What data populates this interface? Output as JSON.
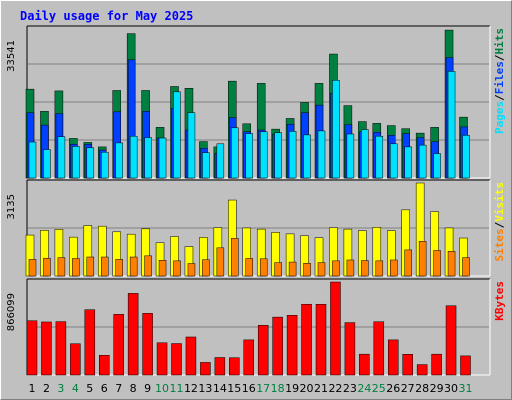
{
  "title": "Daily usage for May 2025",
  "chart_data": [
    {
      "type": "bar",
      "panel": "pages-files-hits",
      "categories": [
        "1",
        "2",
        "3",
        "4",
        "5",
        "6",
        "7",
        "8",
        "9",
        "10",
        "11",
        "12",
        "13",
        "14",
        "15",
        "16",
        "17",
        "18",
        "19",
        "20",
        "21",
        "22",
        "23",
        "24",
        "25",
        "26",
        "27",
        "28",
        "29",
        "30",
        "31"
      ],
      "weekend_days": [
        "3",
        "4",
        "10",
        "11",
        "17",
        "18",
        "24",
        "25",
        "31"
      ],
      "ymax_label": "33541",
      "ylim": [
        0,
        33541
      ],
      "series": [
        {
          "name": "Hits",
          "color": "#008040",
          "values": [
            20000,
            15000,
            19600,
            8900,
            8000,
            7000,
            19700,
            32500,
            19700,
            11400,
            20600,
            20200,
            8200,
            7000,
            21800,
            12200,
            21300,
            11000,
            13400,
            17000,
            21300,
            27900,
            16300,
            12700,
            12300,
            11800,
            11100,
            10100,
            11400,
            33300,
            13700
          ]
        },
        {
          "name": "Files",
          "color": "#0040ff",
          "values": [
            14700,
            11900,
            14500,
            7600,
            7600,
            6300,
            14900,
            26600,
            15000,
            9000,
            15700,
            10800,
            6700,
            5600,
            13600,
            10400,
            10800,
            9900,
            12100,
            14700,
            16400,
            19100,
            12000,
            10400,
            10300,
            9600,
            10000,
            9100,
            8200,
            27100,
            11500
          ]
        },
        {
          "name": "Pages",
          "color": "#00e0ff",
          "values": [
            8100,
            6400,
            9300,
            7100,
            6800,
            5800,
            7900,
            9400,
            9100,
            9000,
            19400,
            14700,
            5700,
            7700,
            11300,
            10000,
            10400,
            10200,
            10500,
            9700,
            10600,
            22000,
            9900,
            10900,
            9400,
            7700,
            7000,
            7400,
            5500,
            24000,
            9600
          ]
        }
      ]
    },
    {
      "type": "bar",
      "panel": "visits-sites",
      "categories": [
        "1",
        "2",
        "3",
        "4",
        "5",
        "6",
        "7",
        "8",
        "9",
        "10",
        "11",
        "12",
        "13",
        "14",
        "15",
        "16",
        "17",
        "18",
        "19",
        "20",
        "21",
        "22",
        "23",
        "24",
        "25",
        "26",
        "27",
        "28",
        "29",
        "30",
        "31"
      ],
      "ymax_label": "3135",
      "ylim": [
        0,
        3135
      ],
      "series": [
        {
          "name": "Visits",
          "color": "#ffff00",
          "values": [
            1380,
            1540,
            1570,
            1310,
            1700,
            1680,
            1490,
            1410,
            1590,
            1120,
            1330,
            990,
            1300,
            1630,
            2560,
            1620,
            1580,
            1470,
            1420,
            1360,
            1290,
            1630,
            1580,
            1530,
            1640,
            1530,
            2230,
            3150,
            2170,
            1620,
            1280
          ]
        },
        {
          "name": "Sites",
          "color": "#ff8000",
          "values": [
            560,
            600,
            620,
            590,
            640,
            640,
            560,
            640,
            680,
            530,
            510,
            420,
            550,
            950,
            1270,
            590,
            580,
            450,
            470,
            430,
            450,
            510,
            540,
            520,
            510,
            540,
            880,
            1170,
            860,
            830,
            620
          ]
        }
      ]
    },
    {
      "type": "bar",
      "panel": "kbytes",
      "categories": [
        "1",
        "2",
        "3",
        "4",
        "5",
        "6",
        "7",
        "8",
        "9",
        "10",
        "11",
        "12",
        "13",
        "14",
        "15",
        "16",
        "17",
        "18",
        "19",
        "20",
        "21",
        "22",
        "23",
        "24",
        "25",
        "26",
        "27",
        "28",
        "29",
        "30",
        "31"
      ],
      "ymax_label": "866099",
      "ylim": [
        0,
        866099
      ],
      "series": [
        {
          "name": "KBytes",
          "color": "#ff0000",
          "values": [
            505000,
            494000,
            497000,
            291000,
            608000,
            184000,
            565000,
            760000,
            574000,
            300000,
            293000,
            354000,
            117000,
            163000,
            161000,
            327000,
            463000,
            539000,
            556000,
            659000,
            659000,
            878000,
            488000,
            194000,
            496000,
            327000,
            193000,
            97000,
            194000,
            645000,
            178000
          ]
        }
      ]
    }
  ],
  "right_labels": {
    "panel1": [
      {
        "text": "Pages",
        "color": "#00e0ff"
      },
      {
        "text": "/",
        "color": "#000000"
      },
      {
        "text": "Files",
        "color": "#0040ff"
      },
      {
        "text": "/",
        "color": "#000000"
      },
      {
        "text": "Hits",
        "color": "#008040"
      }
    ],
    "panel2": [
      {
        "text": "Sites",
        "color": "#ff8000"
      },
      {
        "text": "/",
        "color": "#000000"
      },
      {
        "text": "Visits",
        "color": "#ffff00"
      }
    ],
    "panel3": [
      {
        "text": "KBytes",
        "color": "#ff0000"
      }
    ]
  },
  "colors": {
    "weekday_tick": "#000000",
    "weekend_tick": "#008040",
    "panel_bg": "#c0c0c0",
    "gridline": "#808080"
  }
}
